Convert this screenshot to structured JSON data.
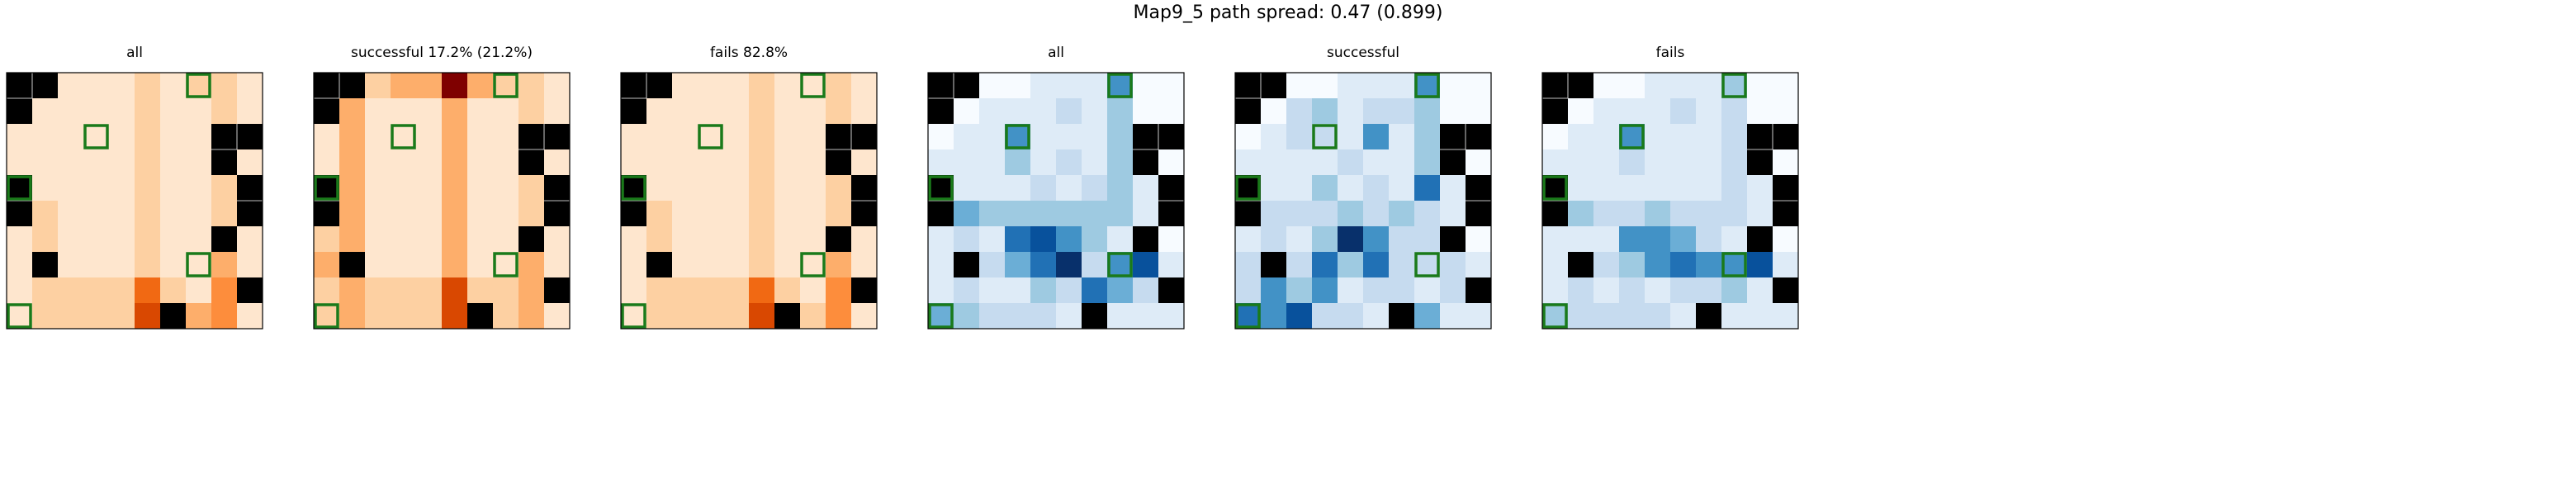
{
  "figure": {
    "suptitle": "Map9_5 path spread: 0.47 (0.899)"
  },
  "palettes": {
    "oranges": [
      "#fff5eb",
      "#fee6ce",
      "#fdd0a2",
      "#fdae6b",
      "#fd8d3c",
      "#f16913",
      "#d94801",
      "#a63603",
      "#7f0000"
    ],
    "blues": [
      "#f7fbff",
      "#deebf7",
      "#c6dbef",
      "#9ecae1",
      "#6baed6",
      "#4292c6",
      "#2171b5",
      "#08519c",
      "#08306b"
    ],
    "obstacle_color": "#000000",
    "marker_color": "#1a7a1a"
  },
  "chart_data": [
    {
      "type": "heatmap",
      "title": "all",
      "cmap": "oranges",
      "grid": [
        10,
        10
      ],
      "obstacles": [
        [
          0,
          0
        ],
        [
          1,
          0
        ],
        [
          0,
          1
        ],
        [
          8,
          2
        ],
        [
          9,
          2
        ],
        [
          8,
          3
        ],
        [
          0,
          4
        ],
        [
          9,
          4
        ],
        [
          0,
          5
        ],
        [
          9,
          5
        ],
        [
          8,
          6
        ],
        [
          1,
          7
        ],
        [
          9,
          8
        ],
        [
          6,
          9
        ]
      ],
      "markers": [
        [
          7,
          0
        ],
        [
          3,
          2
        ],
        [
          0,
          4
        ],
        [
          7,
          7
        ],
        [
          0,
          9
        ]
      ],
      "values": [
        [
          0,
          0,
          1,
          1,
          1,
          2,
          1,
          2,
          2,
          1
        ],
        [
          0,
          1,
          1,
          1,
          1,
          2,
          1,
          1,
          2,
          1
        ],
        [
          1,
          1,
          1,
          1,
          1,
          2,
          1,
          1,
          2,
          1
        ],
        [
          1,
          1,
          1,
          1,
          1,
          2,
          1,
          1,
          2,
          1
        ],
        [
          1,
          1,
          1,
          1,
          1,
          2,
          1,
          1,
          2,
          1
        ],
        [
          1,
          2,
          1,
          1,
          1,
          2,
          1,
          1,
          2,
          1
        ],
        [
          1,
          2,
          1,
          1,
          1,
          2,
          1,
          1,
          3,
          1
        ],
        [
          1,
          2,
          1,
          1,
          1,
          2,
          1,
          1,
          3,
          1
        ],
        [
          1,
          2,
          2,
          2,
          2,
          5,
          2,
          1,
          4,
          1
        ],
        [
          1,
          2,
          2,
          2,
          2,
          6,
          3,
          3,
          4,
          1
        ]
      ]
    },
    {
      "type": "heatmap",
      "title": "successful 17.2% (21.2%)",
      "cmap": "oranges",
      "grid": [
        10,
        10
      ],
      "obstacles": [
        [
          0,
          0
        ],
        [
          1,
          0
        ],
        [
          0,
          1
        ],
        [
          8,
          2
        ],
        [
          9,
          2
        ],
        [
          8,
          3
        ],
        [
          0,
          4
        ],
        [
          9,
          4
        ],
        [
          0,
          5
        ],
        [
          9,
          5
        ],
        [
          8,
          6
        ],
        [
          1,
          7
        ],
        [
          9,
          8
        ],
        [
          6,
          9
        ]
      ],
      "markers": [
        [
          7,
          0
        ],
        [
          3,
          2
        ],
        [
          0,
          4
        ],
        [
          7,
          7
        ],
        [
          0,
          9
        ]
      ],
      "values": [
        [
          0,
          0,
          2,
          3,
          3,
          8,
          3,
          2,
          2,
          1
        ],
        [
          0,
          3,
          1,
          1,
          1,
          3,
          1,
          1,
          2,
          1
        ],
        [
          1,
          3,
          1,
          1,
          1,
          3,
          1,
          1,
          2,
          1
        ],
        [
          1,
          3,
          1,
          1,
          1,
          3,
          1,
          1,
          2,
          1
        ],
        [
          1,
          3,
          1,
          1,
          1,
          3,
          1,
          1,
          2,
          1
        ],
        [
          2,
          3,
          1,
          1,
          1,
          3,
          1,
          1,
          2,
          1
        ],
        [
          2,
          3,
          1,
          1,
          1,
          3,
          1,
          1,
          3,
          1
        ],
        [
          3,
          3,
          1,
          1,
          1,
          3,
          1,
          1,
          3,
          1
        ],
        [
          2,
          3,
          2,
          2,
          2,
          6,
          2,
          2,
          3,
          1
        ],
        [
          2,
          3,
          2,
          2,
          2,
          6,
          2,
          2,
          3,
          1
        ]
      ]
    },
    {
      "type": "heatmap",
      "title": "fails 82.8%",
      "cmap": "oranges",
      "grid": [
        10,
        10
      ],
      "obstacles": [
        [
          0,
          0
        ],
        [
          1,
          0
        ],
        [
          0,
          1
        ],
        [
          8,
          2
        ],
        [
          9,
          2
        ],
        [
          8,
          3
        ],
        [
          0,
          4
        ],
        [
          9,
          4
        ],
        [
          0,
          5
        ],
        [
          9,
          5
        ],
        [
          8,
          6
        ],
        [
          1,
          7
        ],
        [
          9,
          8
        ],
        [
          6,
          9
        ]
      ],
      "markers": [
        [
          7,
          0
        ],
        [
          3,
          2
        ],
        [
          0,
          4
        ],
        [
          7,
          7
        ],
        [
          0,
          9
        ]
      ],
      "values": [
        [
          0,
          0,
          1,
          1,
          1,
          2,
          1,
          1,
          2,
          1
        ],
        [
          0,
          1,
          1,
          1,
          1,
          2,
          1,
          1,
          2,
          1
        ],
        [
          1,
          1,
          1,
          1,
          1,
          2,
          1,
          1,
          2,
          1
        ],
        [
          1,
          1,
          1,
          1,
          1,
          2,
          1,
          1,
          2,
          1
        ],
        [
          1,
          1,
          1,
          1,
          1,
          2,
          1,
          1,
          2,
          1
        ],
        [
          1,
          2,
          1,
          1,
          1,
          2,
          1,
          1,
          2,
          1
        ],
        [
          1,
          2,
          1,
          1,
          1,
          2,
          1,
          1,
          3,
          1
        ],
        [
          1,
          2,
          1,
          1,
          1,
          2,
          1,
          1,
          3,
          1
        ],
        [
          1,
          2,
          2,
          2,
          2,
          5,
          2,
          1,
          4,
          1
        ],
        [
          1,
          2,
          2,
          2,
          2,
          6,
          2,
          2,
          4,
          1
        ]
      ]
    },
    {
      "type": "heatmap",
      "title": "all",
      "cmap": "blues",
      "grid": [
        10,
        10
      ],
      "obstacles": [
        [
          0,
          0
        ],
        [
          1,
          0
        ],
        [
          0,
          1
        ],
        [
          8,
          2
        ],
        [
          9,
          2
        ],
        [
          8,
          3
        ],
        [
          0,
          4
        ],
        [
          9,
          4
        ],
        [
          0,
          5
        ],
        [
          9,
          5
        ],
        [
          8,
          6
        ],
        [
          1,
          7
        ],
        [
          9,
          8
        ],
        [
          6,
          9
        ]
      ],
      "markers": [
        [
          7,
          0
        ],
        [
          3,
          2
        ],
        [
          0,
          4
        ],
        [
          7,
          7
        ],
        [
          0,
          9
        ]
      ],
      "values": [
        [
          0,
          0,
          0,
          0,
          1,
          1,
          1,
          5,
          0,
          0
        ],
        [
          0,
          0,
          1,
          1,
          1,
          2,
          1,
          3,
          0,
          0
        ],
        [
          0,
          1,
          1,
          5,
          1,
          1,
          1,
          3,
          0,
          0
        ],
        [
          1,
          1,
          1,
          3,
          1,
          2,
          1,
          3,
          0,
          0
        ],
        [
          4,
          1,
          1,
          1,
          2,
          1,
          2,
          3,
          1,
          0
        ],
        [
          2,
          4,
          3,
          3,
          3,
          3,
          3,
          3,
          1,
          0
        ],
        [
          1,
          2,
          1,
          6,
          7,
          5,
          3,
          1,
          1,
          0
        ],
        [
          1,
          0,
          2,
          4,
          6,
          8,
          2,
          5,
          7,
          1
        ],
        [
          1,
          2,
          1,
          1,
          3,
          2,
          6,
          4,
          2,
          1
        ],
        [
          4,
          3,
          2,
          2,
          2,
          1,
          4,
          1,
          1,
          1
        ]
      ]
    },
    {
      "type": "heatmap",
      "title": "successful",
      "cmap": "blues",
      "grid": [
        10,
        10
      ],
      "obstacles": [
        [
          0,
          0
        ],
        [
          1,
          0
        ],
        [
          0,
          1
        ],
        [
          8,
          2
        ],
        [
          9,
          2
        ],
        [
          8,
          3
        ],
        [
          0,
          4
        ],
        [
          9,
          4
        ],
        [
          0,
          5
        ],
        [
          9,
          5
        ],
        [
          8,
          6
        ],
        [
          1,
          7
        ],
        [
          9,
          8
        ],
        [
          6,
          9
        ]
      ],
      "markers": [
        [
          7,
          0
        ],
        [
          3,
          2
        ],
        [
          0,
          4
        ],
        [
          7,
          7
        ],
        [
          0,
          9
        ]
      ],
      "values": [
        [
          0,
          0,
          0,
          0,
          1,
          1,
          1,
          5,
          0,
          0
        ],
        [
          0,
          0,
          2,
          3,
          1,
          2,
          2,
          3,
          0,
          0
        ],
        [
          0,
          1,
          2,
          2,
          1,
          5,
          1,
          3,
          0,
          0
        ],
        [
          1,
          1,
          1,
          1,
          2,
          1,
          1,
          3,
          0,
          0
        ],
        [
          3,
          1,
          1,
          3,
          1,
          2,
          1,
          6,
          1,
          0
        ],
        [
          2,
          2,
          2,
          2,
          3,
          2,
          3,
          2,
          1,
          0
        ],
        [
          1,
          2,
          1,
          3,
          8,
          5,
          2,
          2,
          1,
          0
        ],
        [
          2,
          0,
          2,
          6,
          3,
          6,
          2,
          2,
          2,
          1
        ],
        [
          2,
          5,
          3,
          5,
          1,
          2,
          2,
          1,
          2,
          1
        ],
        [
          6,
          5,
          7,
          2,
          2,
          1,
          6,
          4,
          1,
          1
        ]
      ]
    },
    {
      "type": "heatmap",
      "title": "fails",
      "cmap": "blues",
      "grid": [
        10,
        10
      ],
      "obstacles": [
        [
          0,
          0
        ],
        [
          1,
          0
        ],
        [
          0,
          1
        ],
        [
          8,
          2
        ],
        [
          9,
          2
        ],
        [
          8,
          3
        ],
        [
          0,
          4
        ],
        [
          9,
          4
        ],
        [
          0,
          5
        ],
        [
          9,
          5
        ],
        [
          8,
          6
        ],
        [
          1,
          7
        ],
        [
          9,
          8
        ],
        [
          6,
          9
        ]
      ],
      "markers": [
        [
          7,
          0
        ],
        [
          3,
          2
        ],
        [
          0,
          4
        ],
        [
          7,
          7
        ],
        [
          0,
          9
        ]
      ],
      "values": [
        [
          0,
          0,
          0,
          0,
          1,
          1,
          1,
          3,
          0,
          0
        ],
        [
          0,
          0,
          1,
          1,
          1,
          2,
          1,
          2,
          0,
          0
        ],
        [
          0,
          1,
          1,
          5,
          1,
          1,
          1,
          2,
          0,
          0
        ],
        [
          1,
          1,
          1,
          2,
          1,
          1,
          1,
          2,
          0,
          0
        ],
        [
          4,
          1,
          1,
          1,
          1,
          1,
          1,
          2,
          1,
          0
        ],
        [
          2,
          3,
          2,
          2,
          3,
          2,
          2,
          2,
          1,
          0
        ],
        [
          1,
          1,
          1,
          5,
          5,
          4,
          2,
          1,
          1,
          0
        ],
        [
          1,
          0,
          2,
          3,
          5,
          6,
          5,
          5,
          7,
          1
        ],
        [
          1,
          2,
          1,
          2,
          1,
          2,
          2,
          3,
          1,
          1
        ],
        [
          3,
          2,
          2,
          2,
          2,
          1,
          2,
          1,
          1,
          1
        ]
      ]
    }
  ]
}
